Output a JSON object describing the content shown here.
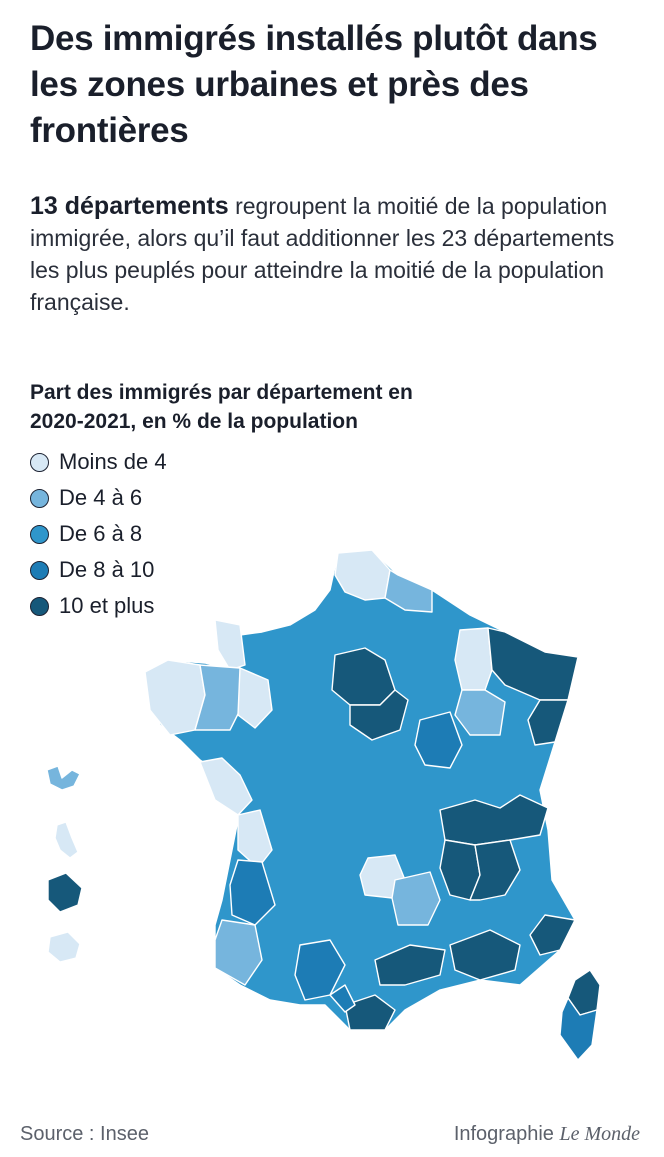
{
  "title": "Des immigrés installés plutôt dans les zones urbaines et près des frontières",
  "intro": {
    "lead": "13 départements",
    "rest": "regroupent la moitié de la population immigrée, alors qu’il faut additionner les 23 départements les plus peuplés pour atteindre la moitié de la population française."
  },
  "legend": {
    "title": "Part des immigrés par département en 2020-2021, en % de la population",
    "items": [
      {
        "label": "Moins de 4",
        "color": "#d7e8f5"
      },
      {
        "label": "De 4 à 6",
        "color": "#76b5dd"
      },
      {
        "label": "De 6 à 8",
        "color": "#2f96cb"
      },
      {
        "label": "De 8 à 10",
        "color": "#1d7cb5"
      },
      {
        "label": "10 et plus",
        "color": "#16587a"
      }
    ]
  },
  "map_regions": {
    "mainland": {
      "class": 2
    },
    "nord": {
      "class": 0
    },
    "pas_de_calais": {
      "class": 1
    },
    "ile_de_france": {
      "class": 4
    },
    "seine_et_marne": {
      "class": 4
    },
    "alsace_moselle": {
      "class": 4
    },
    "haut_rhin": {
      "class": 4
    },
    "meuse_marne": {
      "class": 0
    },
    "bretagne_ouest": {
      "class": 0
    },
    "bretagne_est": {
      "class": 1
    },
    "manche": {
      "class": 0
    },
    "mayenne": {
      "class": 0
    },
    "vendee": {
      "class": 0
    },
    "charente": {
      "class": 0
    },
    "creuse": {
      "class": 0
    },
    "cantal": {
      "class": 1
    },
    "gironde": {
      "class": 3
    },
    "landes": {
      "class": 1
    },
    "ain_savoie": {
      "class": 4
    },
    "rhone": {
      "class": 4
    },
    "isere_drome": {
      "class": 4
    },
    "alpes_maritimes": {
      "class": 4
    },
    "var_bdr": {
      "class": 4
    },
    "gard_herault": {
      "class": 4
    },
    "pyrenees_orientales": {
      "class": 4
    },
    "haute_garonne": {
      "class": 3
    },
    "ariege": {
      "class": 3
    },
    "centre": {
      "class": 3
    },
    "lorraine_sud": {
      "class": 1
    },
    "corse": {
      "class": 4
    },
    "corse_sud": {
      "class": 3
    },
    "guadeloupe": {
      "class": 1
    },
    "martinique": {
      "class": 0
    },
    "guyane": {
      "class": 4
    },
    "reunion": {
      "class": 0
    }
  },
  "footer": {
    "source": "Source : Insee",
    "credit_prefix": "Infographie",
    "credit_brand": "Le Monde"
  }
}
